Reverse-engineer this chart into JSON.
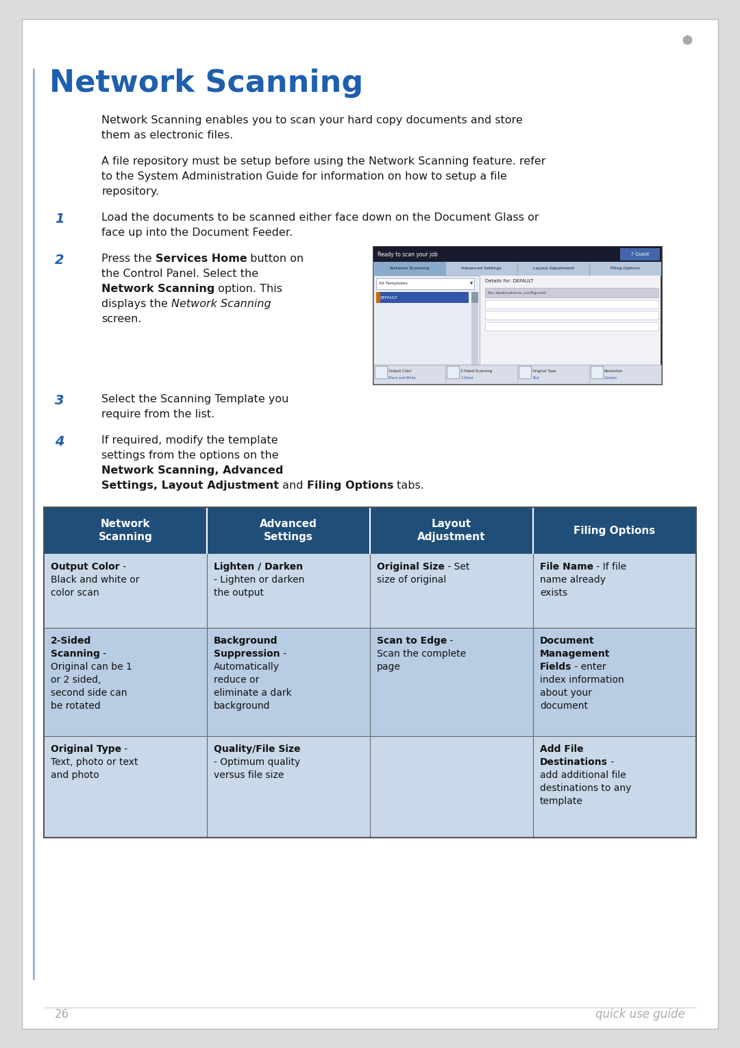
{
  "title": "Network Scanning",
  "title_color": "#1F5FAD",
  "title_fontsize": 32,
  "page_bg": "#FFFFFF",
  "border_color": "#CCCCCC",
  "page_number": "26",
  "page_label": "quick use guide",
  "page_label_color": "#AAAAAA",
  "para1_line1": "Network Scanning enables you to scan your hard copy documents and store",
  "para1_line2": "them as electronic files.",
  "para2_line1": "A file repository must be setup before using the Network Scanning feature. refer",
  "para2_line2": "to the System Administration Guide for information on how to setup a file",
  "para2_line3": "repository.",
  "table_header_bg": "#1F4E79",
  "table_header_text_color": "#FFFFFF",
  "table_row1_bg": "#C9D9EA",
  "table_row2_bg": "#B8CCE4",
  "table_border_color": "#555555",
  "table_headers": [
    "Network\nScanning",
    "Advanced\nSettings",
    "Layout\nAdjustment",
    "Filing Options"
  ],
  "dot_color": "#AAAAAA"
}
